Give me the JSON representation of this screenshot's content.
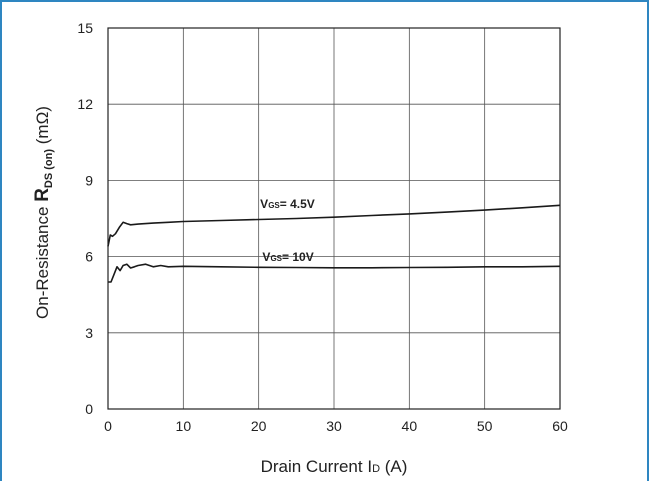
{
  "chart_data": {
    "type": "line",
    "title": "",
    "xlabel": {
      "main": "Drain Current I",
      "sub": "D",
      "unit": " (A)"
    },
    "ylabel": {
      "pre": "On-Resistance ",
      "bold": "R",
      "sub": "DS (on)",
      "unit": " (mΩ)"
    },
    "xlim": [
      0,
      60
    ],
    "ylim": [
      0,
      15
    ],
    "xticks": [
      "0",
      "10",
      "20",
      "30",
      "40",
      "50",
      "60"
    ],
    "yticks": [
      "0",
      "3",
      "6",
      "9",
      "12",
      "15"
    ],
    "grid": true,
    "colors": {
      "line": "#1a1a1a",
      "grid": "#555555",
      "frame": "#2e86c1"
    },
    "series": [
      {
        "label": {
          "v": "V",
          "sub": "GS",
          "rest": "= 4.5V"
        },
        "x": [
          0,
          0.3,
          0.6,
          1,
          1.5,
          2,
          2.5,
          3,
          4,
          5,
          6,
          8,
          10,
          15,
          20,
          25,
          30,
          35,
          40,
          45,
          50,
          55,
          60
        ],
        "y": [
          6.4,
          6.85,
          6.8,
          6.9,
          7.15,
          7.35,
          7.3,
          7.25,
          7.28,
          7.3,
          7.32,
          7.35,
          7.38,
          7.42,
          7.46,
          7.5,
          7.55,
          7.62,
          7.68,
          7.75,
          7.83,
          7.92,
          8.02
        ]
      },
      {
        "label": {
          "v": "V",
          "sub": "GS",
          "rest": "= 10V"
        },
        "x": [
          0,
          0.4,
          0.8,
          1.2,
          1.6,
          2,
          2.5,
          3,
          3.5,
          4,
          5,
          6,
          7,
          8,
          10,
          15,
          20,
          25,
          30,
          35,
          40,
          45,
          50,
          55,
          60
        ],
        "y": [
          5.0,
          5.0,
          5.3,
          5.6,
          5.45,
          5.65,
          5.7,
          5.55,
          5.6,
          5.65,
          5.7,
          5.6,
          5.65,
          5.6,
          5.62,
          5.6,
          5.58,
          5.57,
          5.56,
          5.56,
          5.57,
          5.58,
          5.6,
          5.6,
          5.62
        ]
      }
    ]
  }
}
